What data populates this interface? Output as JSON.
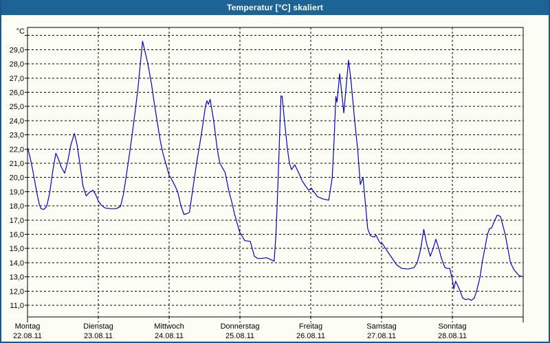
{
  "window": {
    "title": "Temperatur [°C] skaliert"
  },
  "colors": {
    "title_bar": "#1E6396",
    "frame": "#1D5586",
    "panel_bg": "#FCFDF5",
    "grid": "#000000",
    "axis": "#000000",
    "line": "#0000CB",
    "label_text": "#000000",
    "title_text": "#FFFFFF"
  },
  "chart_data": {
    "type": "line",
    "title": "Temperatur [°C] skaliert",
    "unit_label": "°C",
    "legend": "none",
    "grid": "dashed",
    "ylim": [
      10.2,
      30.6
    ],
    "gridline_values": [
      30,
      29,
      28,
      27,
      26,
      25,
      24,
      23,
      22,
      21,
      20,
      19,
      18,
      17,
      16,
      15,
      14,
      13,
      12,
      11
    ],
    "y_axis": {
      "tick_values": [
        29,
        28,
        27,
        26,
        25,
        24,
        23,
        22,
        21,
        20,
        19,
        18,
        17,
        16,
        15,
        14,
        13,
        12,
        11
      ],
      "tick_labels": [
        "29,0",
        "28,0",
        "27,0",
        "26,0",
        "25,0",
        "24,0",
        "23,0",
        "22,0",
        "21,0",
        "20,0",
        "19,0",
        "18,0",
        "17,0",
        "16,0",
        "15,0",
        "14,0",
        "13,0",
        "12,0",
        "11,0"
      ],
      "top_gridline_unlabeled": 30
    },
    "x_axis": {
      "unit": "hours since Monday 00:00",
      "range_hours": [
        0,
        168
      ],
      "days": [
        {
          "name": "Montag",
          "date": "22.08.11"
        },
        {
          "name": "Dienstag",
          "date": "23.08.11"
        },
        {
          "name": "Mittwoch",
          "date": "24.08.11"
        },
        {
          "name": "Donnerstag",
          "date": "25.08.11"
        },
        {
          "name": "Freitag",
          "date": "26.08.11"
        },
        {
          "name": "Samstag",
          "date": "27.08.11"
        },
        {
          "name": "Sonntag",
          "date": "28.08.11"
        }
      ]
    },
    "series": [
      {
        "name": "Temperatur",
        "color": "#0000CB",
        "points": [
          [
            0,
            22.1
          ],
          [
            0.8,
            21.5
          ],
          [
            1.6,
            20.7
          ],
          [
            2.4,
            19.8
          ],
          [
            3.2,
            18.9
          ],
          [
            4.0,
            18.1
          ],
          [
            4.6,
            17.8
          ],
          [
            5.5,
            17.75
          ],
          [
            6.5,
            17.95
          ],
          [
            7.5,
            18.9
          ],
          [
            8.6,
            20.5
          ],
          [
            9.6,
            21.7
          ],
          [
            10.4,
            21.35
          ],
          [
            11.4,
            20.75
          ],
          [
            12.6,
            20.3
          ],
          [
            13.6,
            21.1
          ],
          [
            14.7,
            22.3
          ],
          [
            15.9,
            23.1
          ],
          [
            16.8,
            22.3
          ],
          [
            17.8,
            20.9
          ],
          [
            18.8,
            19.4
          ],
          [
            19.9,
            18.7
          ],
          [
            21.0,
            18.95
          ],
          [
            22.2,
            19.1
          ],
          [
            23.2,
            18.75
          ],
          [
            24.0,
            18.35
          ],
          [
            25.0,
            18.05
          ],
          [
            26.3,
            17.85
          ],
          [
            28.0,
            17.8
          ],
          [
            30.0,
            17.8
          ],
          [
            31.5,
            17.95
          ],
          [
            32.5,
            18.8
          ],
          [
            33.4,
            20.0
          ],
          [
            34.4,
            21.4
          ],
          [
            35.4,
            22.9
          ],
          [
            36.4,
            24.5
          ],
          [
            37.4,
            26.2
          ],
          [
            38.2,
            27.9
          ],
          [
            39.0,
            29.6
          ],
          [
            39.9,
            28.8
          ],
          [
            40.8,
            28.0
          ],
          [
            42.0,
            26.6
          ],
          [
            43.0,
            25.2
          ],
          [
            43.9,
            24.0
          ],
          [
            45.0,
            22.6
          ],
          [
            45.9,
            21.7
          ],
          [
            47.0,
            20.9
          ],
          [
            48.0,
            20.15
          ],
          [
            48.9,
            19.85
          ],
          [
            50.0,
            19.4
          ],
          [
            50.9,
            19.0
          ],
          [
            52.0,
            18.0
          ],
          [
            53.0,
            17.4
          ],
          [
            54.0,
            17.45
          ],
          [
            54.9,
            17.55
          ],
          [
            55.9,
            19.0
          ],
          [
            57.3,
            21.0
          ],
          [
            58.9,
            23.0
          ],
          [
            60.3,
            25.0
          ],
          [
            60.8,
            25.4
          ],
          [
            61.3,
            25.15
          ],
          [
            61.9,
            25.5
          ],
          [
            63.1,
            24.0
          ],
          [
            64.3,
            22.0
          ],
          [
            65.2,
            21.0
          ],
          [
            66.3,
            20.6
          ],
          [
            67.0,
            20.35
          ],
          [
            68.3,
            19.0
          ],
          [
            69.2,
            18.3
          ],
          [
            70.1,
            17.5
          ],
          [
            71.0,
            16.8
          ],
          [
            72.0,
            16.1
          ],
          [
            72.7,
            15.9
          ],
          [
            73.6,
            15.55
          ],
          [
            75.5,
            15.5
          ],
          [
            76.9,
            14.45
          ],
          [
            78.0,
            14.3
          ],
          [
            79.2,
            14.3
          ],
          [
            81.0,
            14.35
          ],
          [
            82.7,
            14.2
          ],
          [
            83.6,
            14.1
          ],
          [
            84.2,
            16.0
          ],
          [
            84.7,
            18.5
          ],
          [
            85.2,
            21.5
          ],
          [
            85.6,
            24.0
          ],
          [
            85.9,
            25.75
          ],
          [
            86.3,
            25.7
          ],
          [
            87.1,
            24.0
          ],
          [
            88.1,
            22.0
          ],
          [
            88.8,
            21.0
          ],
          [
            89.5,
            20.55
          ],
          [
            90.6,
            20.9
          ],
          [
            91.5,
            20.5
          ],
          [
            92.2,
            20.2
          ],
          [
            93.0,
            19.8
          ],
          [
            93.9,
            19.5
          ],
          [
            95.3,
            19.1
          ],
          [
            96.2,
            19.25
          ],
          [
            97.0,
            19.0
          ],
          [
            98.3,
            18.65
          ],
          [
            100.0,
            18.5
          ],
          [
            101.0,
            18.45
          ],
          [
            102.1,
            18.4
          ],
          [
            103.3,
            20.0
          ],
          [
            104.0,
            23.0
          ],
          [
            104.5,
            25.7
          ],
          [
            104.9,
            25.3
          ],
          [
            105.8,
            27.3
          ],
          [
            107.2,
            24.55
          ],
          [
            108.8,
            28.25
          ],
          [
            109.6,
            26.9
          ],
          [
            110.0,
            26.0
          ],
          [
            110.9,
            24.0
          ],
          [
            111.9,
            22.0
          ],
          [
            112.8,
            19.5
          ],
          [
            113.7,
            20.0
          ],
          [
            114.6,
            18.0
          ],
          [
            115.3,
            16.4
          ],
          [
            116.2,
            15.9
          ],
          [
            117.6,
            15.8
          ],
          [
            118.1,
            15.95
          ],
          [
            119.3,
            15.45
          ],
          [
            120.0,
            15.3
          ],
          [
            120.3,
            15.35
          ],
          [
            121.0,
            15.1
          ],
          [
            122.8,
            14.55
          ],
          [
            125.1,
            13.85
          ],
          [
            126.8,
            13.6
          ],
          [
            129.0,
            13.55
          ],
          [
            131.0,
            13.65
          ],
          [
            132.1,
            14.0
          ],
          [
            133.3,
            15.0
          ],
          [
            134.3,
            16.35
          ],
          [
            135.3,
            15.3
          ],
          [
            136.5,
            14.45
          ],
          [
            137.5,
            15.0
          ],
          [
            138.4,
            15.65
          ],
          [
            139.4,
            15.0
          ],
          [
            140.3,
            14.3
          ],
          [
            141.4,
            13.7
          ],
          [
            142.0,
            13.6
          ],
          [
            143.1,
            13.6
          ],
          [
            144.0,
            12.8
          ],
          [
            144.5,
            12.15
          ],
          [
            145.1,
            12.7
          ],
          [
            146.0,
            12.3
          ],
          [
            146.8,
            11.9
          ],
          [
            147.5,
            11.5
          ],
          [
            148.5,
            11.4
          ],
          [
            149.5,
            11.45
          ],
          [
            150.4,
            11.35
          ],
          [
            151.4,
            11.5
          ],
          [
            152.2,
            12.0
          ],
          [
            153.4,
            13.0
          ],
          [
            154.1,
            14.0
          ],
          [
            155.0,
            15.0
          ],
          [
            155.9,
            16.0
          ],
          [
            156.6,
            16.4
          ],
          [
            157.3,
            16.45
          ],
          [
            158.2,
            16.9
          ],
          [
            159.2,
            17.35
          ],
          [
            160.3,
            17.25
          ],
          [
            161.0,
            16.7
          ],
          [
            161.9,
            16.0
          ],
          [
            162.8,
            15.0
          ],
          [
            163.7,
            14.0
          ],
          [
            164.9,
            13.5
          ],
          [
            166.5,
            13.1
          ],
          [
            168.0,
            13.0
          ]
        ]
      }
    ]
  }
}
